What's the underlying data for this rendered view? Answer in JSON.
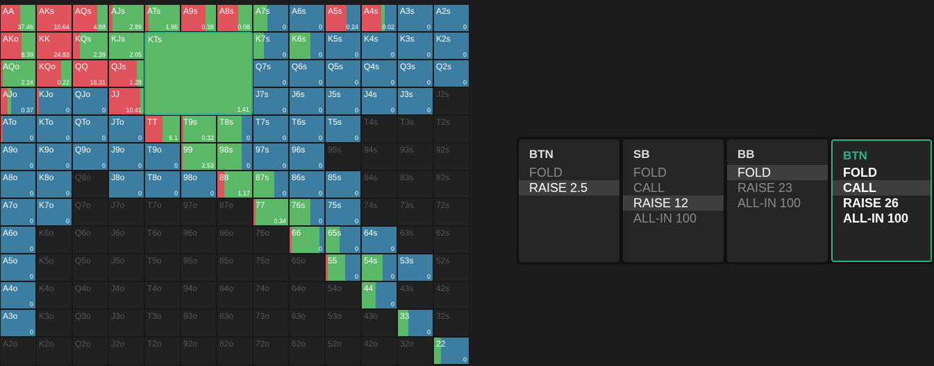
{
  "grid": {
    "rows": [
      [
        {
          "label": "AA",
          "value": 37.46,
          "mix": [
            55,
            45,
            0
          ]
        },
        {
          "label": "AKs",
          "value": 10.64,
          "mix": [
            100,
            0,
            0
          ]
        },
        {
          "label": "AQs",
          "value": 4.88,
          "mix": [
            70,
            30,
            0
          ]
        },
        {
          "label": "AJs",
          "value": 2.89,
          "mix": [
            10,
            90,
            0
          ]
        },
        {
          "label": "ATs",
          "value": 1.96,
          "mix": [
            10,
            90,
            0
          ]
        },
        {
          "label": "A9s",
          "value": 0.38,
          "mix": [
            70,
            30,
            0
          ]
        },
        {
          "label": "A8s",
          "value": 0.08,
          "mix": [
            60,
            40,
            0
          ]
        },
        {
          "label": "A7s",
          "value": 0,
          "mix": [
            0,
            40,
            60
          ]
        },
        {
          "label": "A6s",
          "value": 0,
          "mix": [
            0,
            0,
            100
          ]
        },
        {
          "label": "A5s",
          "value": 0.24,
          "mix": [
            60,
            0,
            40
          ]
        },
        {
          "label": "A4s",
          "value": 0.02,
          "mix": [
            55,
            10,
            35
          ]
        },
        {
          "label": "A3s",
          "value": 0,
          "mix": [
            0,
            0,
            100
          ]
        },
        {
          "label": "A2s",
          "value": 0,
          "mix": [
            0,
            0,
            100
          ]
        }
      ],
      [
        {
          "label": "AKo",
          "value": 8.39,
          "mix": [
            60,
            40,
            0
          ]
        },
        {
          "label": "KK",
          "value": 24.83,
          "mix": [
            100,
            0,
            0
          ]
        },
        {
          "label": "KQs",
          "value": 2.39,
          "mix": [
            20,
            80,
            0
          ]
        },
        {
          "label": "KJs",
          "value": 2.05,
          "mix": [
            0,
            100,
            0
          ]
        },
        null,
        null,
        null,
        {
          "label": "K7s",
          "value": 0,
          "mix": [
            0,
            30,
            70
          ]
        },
        {
          "label": "K6s",
          "value": 0,
          "mix": [
            0,
            60,
            40
          ]
        },
        {
          "label": "K5s",
          "value": 0,
          "mix": [
            0,
            0,
            100
          ]
        },
        {
          "label": "K4s",
          "value": 0,
          "mix": [
            0,
            0,
            100
          ]
        },
        {
          "label": "K3s",
          "value": 0,
          "mix": [
            0,
            0,
            100
          ]
        },
        {
          "label": "K2s",
          "value": 0,
          "mix": [
            0,
            0,
            100
          ]
        }
      ],
      [
        {
          "label": "AQo",
          "value": 2.24,
          "mix": [
            5,
            95,
            0
          ]
        },
        {
          "label": "KQo",
          "value": 0.22,
          "mix": [
            70,
            30,
            0
          ]
        },
        {
          "label": "QQ",
          "value": 16.31,
          "mix": [
            100,
            0,
            0
          ]
        },
        {
          "label": "QJs",
          "value": 1.28,
          "mix": [
            80,
            20,
            0
          ]
        },
        null,
        null,
        null,
        {
          "label": "Q7s",
          "value": 0,
          "mix": [
            0,
            0,
            100
          ]
        },
        {
          "label": "Q6s",
          "value": 0,
          "mix": [
            0,
            0,
            100
          ]
        },
        {
          "label": "Q5s",
          "value": 0,
          "mix": [
            0,
            0,
            100
          ]
        },
        {
          "label": "Q4s",
          "value": 0,
          "mix": [
            0,
            0,
            100
          ]
        },
        {
          "label": "Q3s",
          "value": 0,
          "mix": [
            0,
            0,
            100
          ]
        },
        {
          "label": "Q2s",
          "value": 0,
          "mix": [
            0,
            0,
            100
          ]
        }
      ],
      [
        {
          "label": "AJo",
          "value": 0.37,
          "mix": [
            20,
            10,
            70
          ]
        },
        {
          "label": "KJo",
          "value": 0,
          "mix": [
            5,
            0,
            95
          ]
        },
        {
          "label": "QJo",
          "value": 0,
          "mix": [
            0,
            0,
            100
          ]
        },
        {
          "label": "JJ",
          "value": 10.41,
          "mix": [
            90,
            10,
            0
          ]
        },
        null,
        null,
        null,
        {
          "label": "J7s",
          "value": 0,
          "mix": [
            0,
            0,
            100
          ]
        },
        {
          "label": "J6s",
          "value": 0,
          "mix": [
            0,
            0,
            100
          ]
        },
        {
          "label": "J5s",
          "value": 0,
          "mix": [
            0,
            0,
            100
          ]
        },
        {
          "label": "J4s",
          "value": 0,
          "mix": [
            0,
            0,
            100
          ]
        },
        {
          "label": "J3s",
          "value": 0,
          "mix": [
            0,
            0,
            100
          ]
        },
        {
          "label": "J2s"
        }
      ],
      [
        {
          "label": "ATo",
          "value": 0,
          "mix": [
            5,
            0,
            95
          ]
        },
        {
          "label": "KTo",
          "value": 0,
          "mix": [
            0,
            0,
            100
          ]
        },
        {
          "label": "QTo",
          "value": 0,
          "mix": [
            0,
            0,
            100
          ]
        },
        {
          "label": "JTo",
          "value": 0,
          "mix": [
            0,
            0,
            100
          ]
        },
        {
          "label": "TT",
          "value": 6.1,
          "mix": [
            50,
            50,
            0
          ]
        },
        {
          "label": "T9s",
          "value": 0.32,
          "mix": [
            5,
            95,
            0
          ]
        },
        {
          "label": "T8s",
          "value": 0,
          "mix": [
            0,
            70,
            30
          ]
        },
        {
          "label": "T7s",
          "value": 0,
          "mix": [
            0,
            0,
            100
          ]
        },
        {
          "label": "T6s",
          "value": 0,
          "mix": [
            0,
            0,
            100
          ]
        },
        {
          "label": "T5s",
          "value": 0,
          "mix": [
            0,
            0,
            100
          ]
        },
        {
          "label": "T4s"
        },
        {
          "label": "T3s"
        },
        {
          "label": "T2s"
        }
      ],
      [
        {
          "label": "A9o",
          "value": 0,
          "mix": [
            0,
            0,
            100
          ]
        },
        {
          "label": "K9o",
          "value": 0,
          "mix": [
            0,
            0,
            100
          ]
        },
        {
          "label": "Q9o",
          "value": 0,
          "mix": [
            0,
            0,
            100
          ]
        },
        {
          "label": "J9o",
          "value": 0,
          "mix": [
            0,
            0,
            100
          ]
        },
        {
          "label": "T9o",
          "value": 0,
          "mix": [
            0,
            0,
            100
          ]
        },
        {
          "label": "99",
          "value": 2.53,
          "mix": [
            3,
            97,
            0
          ]
        },
        {
          "label": "98s",
          "value": 0,
          "mix": [
            0,
            70,
            30
          ]
        },
        {
          "label": "97s",
          "value": 0,
          "mix": [
            0,
            0,
            100
          ]
        },
        {
          "label": "96s",
          "value": 0,
          "mix": [
            0,
            0,
            100
          ]
        },
        {
          "label": "95s"
        },
        {
          "label": "94s"
        },
        {
          "label": "93s"
        },
        {
          "label": "92s"
        }
      ],
      [
        {
          "label": "A8o",
          "value": 0,
          "mix": [
            0,
            0,
            100
          ]
        },
        {
          "label": "K8o",
          "value": 0,
          "mix": [
            0,
            0,
            100
          ]
        },
        {
          "label": "Q8o"
        },
        {
          "label": "J8o",
          "value": 0,
          "mix": [
            0,
            0,
            100
          ]
        },
        {
          "label": "T8o",
          "value": 0,
          "mix": [
            0,
            0,
            100
          ]
        },
        {
          "label": "98o",
          "value": 0,
          "mix": [
            0,
            0,
            100
          ]
        },
        {
          "label": "88",
          "value": 1.17,
          "mix": [
            20,
            80,
            0
          ]
        },
        {
          "label": "87s",
          "value": 0,
          "mix": [
            0,
            60,
            40
          ]
        },
        {
          "label": "86s",
          "value": 0,
          "mix": [
            0,
            0,
            100
          ]
        },
        {
          "label": "85s",
          "value": 0,
          "mix": [
            0,
            0,
            100
          ]
        },
        {
          "label": "84s"
        },
        {
          "label": "83s"
        },
        {
          "label": "82s"
        }
      ],
      [
        {
          "label": "A7o",
          "value": 0,
          "mix": [
            0,
            0,
            100
          ]
        },
        {
          "label": "K7o",
          "value": 0,
          "mix": [
            0,
            0,
            100
          ]
        },
        {
          "label": "Q7o"
        },
        {
          "label": "J7o"
        },
        {
          "label": "T7o"
        },
        {
          "label": "97o"
        },
        {
          "label": "87o"
        },
        {
          "label": "77",
          "value": 0.34,
          "mix": [
            5,
            95,
            0
          ]
        },
        {
          "label": "76s",
          "value": 0,
          "mix": [
            0,
            60,
            40
          ]
        },
        {
          "label": "75s",
          "value": 0,
          "mix": [
            0,
            0,
            100
          ]
        },
        {
          "label": "74s"
        },
        {
          "label": "73s"
        },
        {
          "label": "72s"
        }
      ],
      [
        {
          "label": "A6o",
          "value": 0,
          "mix": [
            0,
            0,
            100
          ]
        },
        {
          "label": "K6o"
        },
        {
          "label": "Q6o"
        },
        {
          "label": "J6o"
        },
        {
          "label": "T6o"
        },
        {
          "label": "96o"
        },
        {
          "label": "86o"
        },
        {
          "label": "76o"
        },
        {
          "label": "66",
          "value": 0,
          "mix": [
            5,
            80,
            15
          ]
        },
        {
          "label": "65s",
          "value": 0,
          "mix": [
            0,
            40,
            60
          ]
        },
        {
          "label": "64s",
          "value": 0,
          "mix": [
            0,
            0,
            100
          ]
        },
        {
          "label": "63s"
        },
        {
          "label": "62s"
        }
      ],
      [
        {
          "label": "A5o",
          "value": 0,
          "mix": [
            0,
            0,
            100
          ]
        },
        {
          "label": "K5o"
        },
        {
          "label": "Q5o"
        },
        {
          "label": "J5o"
        },
        {
          "label": "T5o"
        },
        {
          "label": "95o"
        },
        {
          "label": "85o"
        },
        {
          "label": "75o"
        },
        {
          "label": "65o"
        },
        {
          "label": "55",
          "value": 0,
          "mix": [
            5,
            50,
            45
          ]
        },
        {
          "label": "54s",
          "value": 0,
          "mix": [
            0,
            60,
            40
          ]
        },
        {
          "label": "53s",
          "value": 0,
          "mix": [
            0,
            0,
            100
          ]
        },
        {
          "label": "52s"
        }
      ],
      [
        {
          "label": "A4o",
          "value": 0,
          "mix": [
            0,
            0,
            100
          ]
        },
        {
          "label": "K4o"
        },
        {
          "label": "Q4o"
        },
        {
          "label": "J4o"
        },
        {
          "label": "T4o"
        },
        {
          "label": "94o"
        },
        {
          "label": "84o"
        },
        {
          "label": "74o"
        },
        {
          "label": "64o"
        },
        {
          "label": "54o"
        },
        {
          "label": "44",
          "value": 0,
          "mix": [
            0,
            40,
            60
          ]
        },
        {
          "label": "43s"
        },
        {
          "label": "42s"
        }
      ],
      [
        {
          "label": "A3o",
          "value": 0,
          "mix": [
            0,
            0,
            100
          ]
        },
        {
          "label": "K3o"
        },
        {
          "label": "Q3o"
        },
        {
          "label": "J3o"
        },
        {
          "label": "T3o"
        },
        {
          "label": "93o"
        },
        {
          "label": "83o"
        },
        {
          "label": "73o"
        },
        {
          "label": "63o"
        },
        {
          "label": "53o"
        },
        {
          "label": "43o"
        },
        {
          "label": "33",
          "value": 0,
          "mix": [
            0,
            30,
            70
          ]
        },
        {
          "label": "32s"
        }
      ],
      [
        {
          "label": "A2o"
        },
        {
          "label": "K2o"
        },
        {
          "label": "Q2o"
        },
        {
          "label": "J2o"
        },
        {
          "label": "T2o"
        },
        {
          "label": "92o"
        },
        {
          "label": "82o"
        },
        {
          "label": "72o"
        },
        {
          "label": "62o"
        },
        {
          "label": "52o"
        },
        {
          "label": "42o"
        },
        {
          "label": "32o"
        },
        {
          "label": "22",
          "value": 0,
          "mix": [
            0,
            20,
            80
          ]
        }
      ]
    ],
    "focus": {
      "label": "KTs",
      "value": 1.41,
      "mix": [
        0,
        100,
        0
      ]
    }
  },
  "actions": [
    {
      "position": "BTN",
      "options": [
        "FOLD",
        "RAISE 2.5"
      ],
      "selected": 1
    },
    {
      "position": "SB",
      "options": [
        "FOLD",
        "CALL",
        "RAISE 12",
        "ALL-IN 100"
      ],
      "selected": 2
    },
    {
      "position": "BB",
      "options": [
        "FOLD",
        "RAISE 23",
        "ALL-IN 100"
      ],
      "selected": 0
    },
    {
      "position": "BTN",
      "options": [
        "FOLD",
        "CALL",
        "RAISE 26",
        "ALL-IN 100"
      ],
      "selected": 1,
      "active": true
    }
  ]
}
